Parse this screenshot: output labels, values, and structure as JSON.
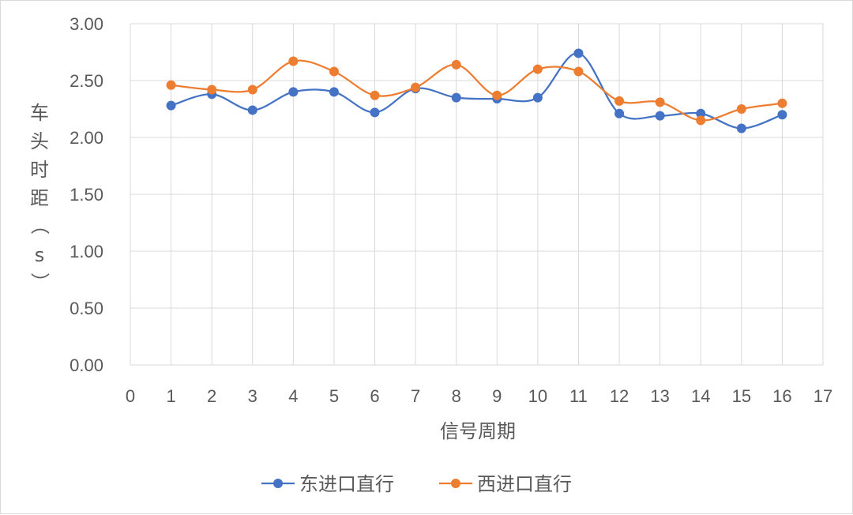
{
  "chart_data": {
    "type": "line",
    "title": "",
    "xlabel": "信号周期",
    "ylabel": "车头时距（s）",
    "xlim": [
      0,
      17
    ],
    "ylim": [
      0,
      3.0
    ],
    "xticks": [
      "0",
      "1",
      "2",
      "3",
      "4",
      "5",
      "6",
      "7",
      "8",
      "9",
      "10",
      "11",
      "12",
      "13",
      "14",
      "15",
      "16",
      "17"
    ],
    "yticks": [
      "0.00",
      "0.50",
      "1.00",
      "1.50",
      "2.00",
      "2.50",
      "3.00"
    ],
    "grid": "vertical and horizontal",
    "smooth": true,
    "legend_position": "bottom",
    "x": [
      1,
      2,
      3,
      4,
      5,
      6,
      7,
      8,
      9,
      10,
      11,
      12,
      13,
      14,
      15,
      16
    ],
    "series": [
      {
        "name": "东进口直行",
        "color": "#4472c4",
        "values": [
          2.28,
          2.38,
          2.24,
          2.4,
          2.4,
          2.22,
          2.43,
          2.35,
          2.34,
          2.35,
          2.74,
          2.21,
          2.19,
          2.21,
          2.08,
          2.2
        ]
      },
      {
        "name": "西进口直行",
        "color": "#ed7d31",
        "values": [
          2.46,
          2.42,
          2.42,
          2.67,
          2.58,
          2.37,
          2.44,
          2.64,
          2.37,
          2.6,
          2.58,
          2.32,
          2.31,
          2.15,
          2.25,
          2.3
        ]
      }
    ]
  }
}
